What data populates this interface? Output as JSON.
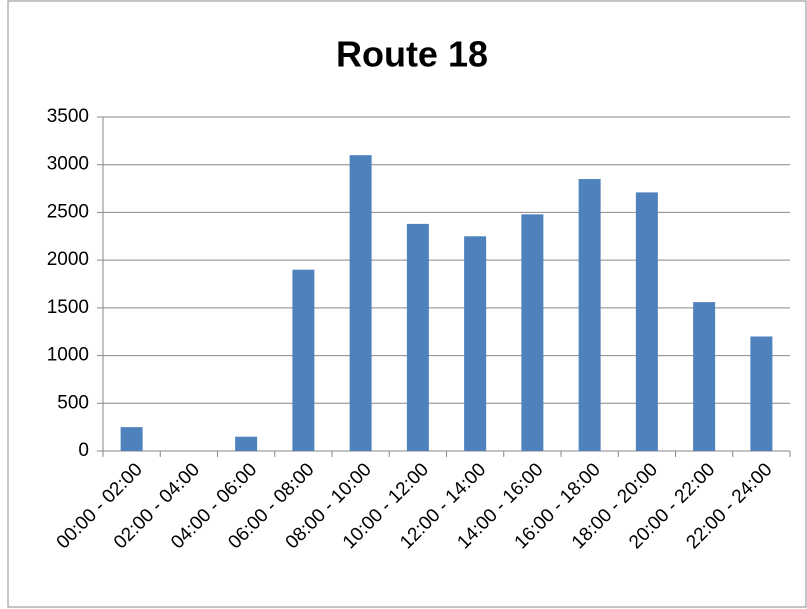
{
  "chart_data": {
    "type": "bar",
    "title": "Route 18",
    "categories": [
      "00:00 - 02:00",
      "02:00 - 04:00",
      "04:00 - 06:00",
      "06:00 - 08:00",
      "08:00 - 10:00",
      "10:00 - 12:00",
      "12:00 - 14:00",
      "14:00 - 16:00",
      "16:00 - 18:00",
      "18:00 - 20:00",
      "20:00 - 22:00",
      "22:00 - 24:00"
    ],
    "values": [
      250,
      0,
      150,
      1900,
      3100,
      2380,
      2250,
      2480,
      2850,
      2710,
      1560,
      1200
    ],
    "color": "#4f81bd",
    "ylim": [
      0,
      3500
    ],
    "yticks": [
      0,
      500,
      1000,
      1500,
      2000,
      2500,
      3000,
      3500
    ],
    "grid": true
  }
}
